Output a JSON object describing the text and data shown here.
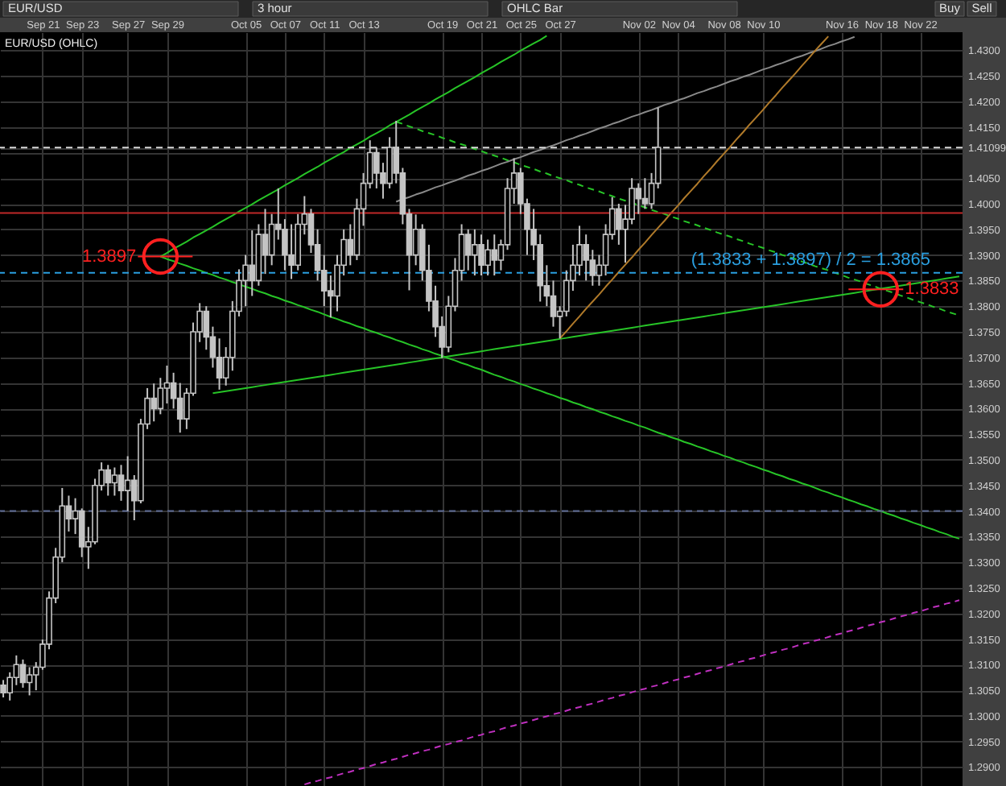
{
  "chart_data": {
    "type": "candlestick",
    "title": "EUR/USD (OHLC)",
    "categories": [
      null,
      null,
      null,
      null,
      null,
      null,
      "Sep 21",
      null,
      null,
      null,
      null,
      null,
      "Sep 23",
      null,
      null,
      null,
      null,
      null,
      null,
      "Sep 27",
      null,
      null,
      null,
      null,
      null,
      "Sep 29",
      null,
      null,
      null,
      null,
      null,
      null,
      null,
      null,
      null,
      null,
      null,
      "Oct 05",
      null,
      null,
      null,
      null,
      null,
      "Oct 07",
      null,
      null,
      null,
      null,
      null,
      "Oct 11",
      null,
      null,
      null,
      null,
      null,
      "Oct 13",
      null,
      null,
      null,
      null,
      null,
      null,
      null,
      null,
      null,
      null,
      null,
      "Oct 19",
      null,
      null,
      null,
      null,
      null,
      "Oct 21",
      null,
      null,
      null,
      null,
      null,
      "Oct 25",
      null,
      null,
      null,
      null,
      null,
      "Oct 27",
      null,
      null,
      null,
      null,
      null,
      null,
      null,
      null,
      null,
      null,
      null,
      "Nov 02",
      null,
      null,
      null,
      null,
      null,
      "Nov 04",
      null,
      null,
      null,
      null,
      null,
      null,
      "Nov 08",
      null,
      null,
      null,
      null,
      null,
      "Nov 10",
      null,
      null,
      null,
      null,
      null,
      null,
      null,
      null,
      null,
      null,
      null,
      "Nov 16",
      null,
      null,
      null,
      null,
      null,
      "Nov 18",
      null,
      null,
      null,
      null,
      null,
      "Nov 22",
      null,
      null,
      null,
      null,
      null,
      null
    ],
    "ylim": [
      1.2863,
      1.4335
    ],
    "yticks": [
      {
        "value": 1.29,
        "label": "1.2900"
      },
      {
        "value": 1.295,
        "label": "1.2950"
      },
      {
        "value": 1.3,
        "label": "1.3000"
      },
      {
        "value": 1.305,
        "label": "1.3050"
      },
      {
        "value": 1.31,
        "label": "1.3100"
      },
      {
        "value": 1.315,
        "label": "1.3150"
      },
      {
        "value": 1.32,
        "label": "1.3200"
      },
      {
        "value": 1.325,
        "label": "1.3250"
      },
      {
        "value": 1.33,
        "label": "1.3300"
      },
      {
        "value": 1.335,
        "label": "1.3350"
      },
      {
        "value": 1.34,
        "label": "1.3400"
      },
      {
        "value": 1.345,
        "label": "1.3450"
      },
      {
        "value": 1.35,
        "label": "1.3500"
      },
      {
        "value": 1.355,
        "label": "1.3550"
      },
      {
        "value": 1.36,
        "label": "1.3600"
      },
      {
        "value": 1.365,
        "label": "1.3650"
      },
      {
        "value": 1.37,
        "label": "1.3700"
      },
      {
        "value": 1.375,
        "label": "1.3750"
      },
      {
        "value": 1.38,
        "label": "1.3800"
      },
      {
        "value": 1.385,
        "label": "1.3850"
      },
      {
        "value": 1.39,
        "label": "1.3900"
      },
      {
        "value": 1.395,
        "label": "1.3950"
      },
      {
        "value": 1.4,
        "label": "1.4000"
      },
      {
        "value": 1.405,
        "label": "1.4050"
      },
      {
        "value": 1.41,
        "label": null
      },
      {
        "value": 1.41099,
        "label": "1.41099"
      },
      {
        "value": 1.415,
        "label": "1.4150"
      },
      {
        "value": 1.42,
        "label": "1.4200"
      },
      {
        "value": 1.425,
        "label": "1.4250"
      },
      {
        "value": 1.43,
        "label": "1.4300"
      }
    ],
    "grid": true,
    "series": [
      {
        "color": "#c4c4c4",
        "ohlc": [
          [
            1.306,
            1.307,
            1.3036,
            1.3045
          ],
          [
            1.3045,
            1.3085,
            1.303,
            1.3075
          ],
          [
            1.3075,
            1.3118,
            1.306,
            1.31
          ],
          [
            1.31,
            1.311,
            1.3055,
            1.3065
          ],
          [
            1.3065,
            1.3095,
            1.304,
            1.308
          ],
          [
            1.308,
            1.3105,
            1.305,
            1.3095
          ],
          [
            1.3095,
            1.3149,
            1.309,
            1.314
          ],
          [
            1.314,
            1.3243,
            1.313,
            1.323
          ],
          [
            1.323,
            1.3328,
            1.322,
            1.331
          ],
          [
            1.331,
            1.3445,
            1.33,
            1.341
          ],
          [
            1.341,
            1.343,
            1.336,
            1.3385
          ],
          [
            1.3385,
            1.3425,
            1.3355,
            1.34
          ],
          [
            1.34,
            1.3405,
            1.331,
            1.333
          ],
          [
            1.333,
            1.3369,
            1.3287,
            1.334
          ],
          [
            1.334,
            1.3463,
            1.3335,
            1.345
          ],
          [
            1.345,
            1.3495,
            1.344,
            1.348
          ],
          [
            1.348,
            1.349,
            1.343,
            1.3455
          ],
          [
            1.3455,
            1.3485,
            1.343,
            1.347
          ],
          [
            1.347,
            1.349,
            1.342,
            1.344
          ],
          [
            1.344,
            1.3507,
            1.34,
            1.346
          ],
          [
            1.346,
            1.347,
            1.3382,
            1.342
          ],
          [
            1.342,
            1.358,
            1.3415,
            1.357
          ],
          [
            1.357,
            1.364,
            1.356,
            1.362
          ],
          [
            1.362,
            1.3649,
            1.3575,
            1.36
          ],
          [
            1.36,
            1.366,
            1.3589,
            1.364
          ],
          [
            1.364,
            1.3684,
            1.361,
            1.365
          ],
          [
            1.365,
            1.367,
            1.36,
            1.362
          ],
          [
            1.362,
            1.365,
            1.3553,
            1.358
          ],
          [
            1.358,
            1.364,
            1.356,
            1.363
          ],
          [
            1.363,
            1.3768,
            1.3625,
            1.375
          ],
          [
            1.375,
            1.3806,
            1.373,
            1.379
          ],
          [
            1.379,
            1.38,
            1.3715,
            1.374
          ],
          [
            1.374,
            1.376,
            1.368,
            1.37
          ],
          [
            1.37,
            1.3737,
            1.3637,
            1.366
          ],
          [
            1.366,
            1.372,
            1.3645,
            1.37
          ],
          [
            1.37,
            1.381,
            1.3674,
            1.379
          ],
          [
            1.379,
            1.3872,
            1.378,
            1.385
          ],
          [
            1.385,
            1.39,
            1.38,
            1.388
          ],
          [
            1.388,
            1.3948,
            1.382,
            1.385
          ],
          [
            1.385,
            1.396,
            1.384,
            1.394
          ],
          [
            1.394,
            1.399,
            1.3863,
            1.39
          ],
          [
            1.39,
            1.398,
            1.388,
            1.396
          ],
          [
            1.396,
            1.403,
            1.393,
            1.395
          ],
          [
            1.395,
            1.397,
            1.387,
            1.39
          ],
          [
            1.39,
            1.396,
            1.3853,
            1.388
          ],
          [
            1.388,
            1.398,
            1.387,
            1.396
          ],
          [
            1.396,
            1.4015,
            1.394,
            1.398
          ],
          [
            1.398,
            1.399,
            1.3904,
            1.392
          ],
          [
            1.392,
            1.395,
            1.385,
            1.387
          ],
          [
            1.387,
            1.39,
            1.38,
            1.383
          ],
          [
            1.383,
            1.386,
            1.3778,
            1.382
          ],
          [
            1.382,
            1.39,
            1.379,
            1.388
          ],
          [
            1.388,
            1.395,
            1.386,
            1.393
          ],
          [
            1.393,
            1.396,
            1.388,
            1.39
          ],
          [
            1.39,
            1.401,
            1.389,
            1.399
          ],
          [
            1.399,
            1.406,
            1.3957,
            1.404
          ],
          [
            1.404,
            1.4124,
            1.403,
            1.41
          ],
          [
            1.41,
            1.411,
            1.403,
            1.406
          ],
          [
            1.406,
            1.408,
            1.401,
            1.404
          ],
          [
            1.404,
            1.413,
            1.403,
            1.411
          ],
          [
            1.411,
            1.4162,
            1.404,
            1.406
          ],
          [
            1.406,
            1.407,
            1.396,
            1.398
          ],
          [
            1.398,
            1.399,
            1.3831,
            1.39
          ],
          [
            1.39,
            1.3979,
            1.388,
            1.395
          ],
          [
            1.395,
            1.396,
            1.385,
            1.387
          ],
          [
            1.387,
            1.392,
            1.379,
            1.381
          ],
          [
            1.381,
            1.384,
            1.374,
            1.376
          ],
          [
            1.376,
            1.378,
            1.3699,
            1.372
          ],
          [
            1.372,
            1.382,
            1.371,
            1.38
          ],
          [
            1.38,
            1.3894,
            1.379,
            1.387
          ],
          [
            1.387,
            1.396,
            1.385,
            1.394
          ],
          [
            1.394,
            1.395,
            1.387,
            1.39
          ],
          [
            1.39,
            1.395,
            1.386,
            1.392
          ],
          [
            1.392,
            1.394,
            1.386,
            1.388
          ],
          [
            1.388,
            1.393,
            1.386,
            1.391
          ],
          [
            1.391,
            1.394,
            1.386,
            1.389
          ],
          [
            1.389,
            1.393,
            1.387,
            1.392
          ],
          [
            1.392,
            1.405,
            1.391,
            1.403
          ],
          [
            1.403,
            1.4089,
            1.4,
            1.406
          ],
          [
            1.406,
            1.407,
            1.398,
            1.4
          ],
          [
            1.4,
            1.401,
            1.39,
            1.395
          ],
          [
            1.395,
            1.399,
            1.389,
            1.392
          ],
          [
            1.392,
            1.394,
            1.3809,
            1.384
          ],
          [
            1.384,
            1.388,
            1.38,
            1.382
          ],
          [
            1.382,
            1.385,
            1.376,
            1.378
          ],
          [
            1.378,
            1.38,
            1.3737,
            1.379
          ],
          [
            1.379,
            1.387,
            1.378,
            1.385
          ],
          [
            1.385,
            1.392,
            1.383,
            1.388
          ],
          [
            1.388,
            1.3957,
            1.386,
            1.392
          ],
          [
            1.392,
            1.394,
            1.385,
            1.389
          ],
          [
            1.389,
            1.391,
            1.384,
            1.386
          ],
          [
            1.386,
            1.39,
            1.384,
            1.388
          ],
          [
            1.388,
            1.396,
            1.386,
            1.394
          ],
          [
            1.394,
            1.4013,
            1.393,
            1.399
          ],
          [
            1.399,
            1.4,
            1.392,
            1.395
          ],
          [
            1.395,
            1.3998,
            1.3885,
            1.397
          ],
          [
            1.397,
            1.405,
            1.396,
            1.403
          ],
          [
            1.403,
            1.404,
            1.398,
            1.401
          ],
          [
            1.401,
            1.405,
            1.399,
            1.4
          ],
          [
            1.4,
            1.406,
            1.399,
            1.404
          ],
          [
            1.404,
            1.4188,
            1.403,
            1.411
          ],
          null,
          null,
          null,
          null,
          null,
          null,
          null,
          null,
          null,
          null,
          null,
          null,
          null,
          null,
          null,
          null,
          null,
          null,
          null,
          null,
          null,
          null,
          null,
          null,
          null,
          null,
          null,
          null,
          null,
          null,
          null,
          null,
          null,
          null,
          null,
          null,
          null,
          null,
          null,
          null,
          null,
          null,
          null,
          null,
          null,
          null
        ]
      },
      {
        "type": "line",
        "color": "#27c427",
        "line_style": "solid",
        "values": [
          null,
          null,
          null,
          null,
          null,
          null,
          null,
          null,
          null,
          null,
          null,
          null,
          null,
          null,
          null,
          null,
          null,
          null,
          null,
          null,
          null,
          null,
          null,
          null,
          1.3897,
          1.3904,
          1.3912,
          1.3919,
          1.3926,
          1.3934,
          1.3941,
          1.3948,
          1.3955,
          1.3963,
          1.397,
          1.3977,
          1.3985,
          1.3992,
          1.3999,
          1.4007,
          1.4014,
          1.4021,
          1.4028,
          1.4036,
          1.4043,
          1.405,
          1.4058,
          1.4065,
          1.4072,
          1.408,
          1.4087,
          1.4094,
          1.4101,
          1.4109,
          1.4116,
          1.4123,
          1.4131,
          1.4138,
          1.4145,
          1.4153,
          1.416,
          1.4167,
          1.4174,
          1.4182,
          1.4189,
          1.4196,
          1.4204,
          1.4211,
          1.4218,
          1.4226,
          1.4233,
          1.424,
          1.4247,
          1.4255,
          1.4262,
          1.4269,
          1.4277,
          1.4284,
          1.4291,
          1.4299,
          1.4306,
          1.4313,
          1.432,
          1.4328,
          null,
          null,
          null,
          null,
          null,
          null,
          null,
          null,
          null,
          null,
          null,
          null,
          null,
          null,
          null,
          null,
          null,
          null,
          null,
          null,
          null,
          null,
          null,
          null,
          null,
          null,
          null,
          null,
          null,
          null,
          null,
          null,
          null,
          null,
          null,
          null,
          null,
          null,
          null,
          null,
          null,
          null,
          null,
          null,
          null,
          null,
          null,
          null,
          null,
          null,
          null,
          null,
          null,
          null,
          null,
          null,
          null,
          null,
          null,
          null,
          null,
          null,
          null
        ]
      },
      {
        "type": "line",
        "color": "#27c427",
        "line_style": "solid",
        "values": [
          null,
          null,
          null,
          null,
          null,
          null,
          null,
          null,
          null,
          null,
          null,
          null,
          null,
          null,
          null,
          null,
          null,
          null,
          null,
          null,
          null,
          null,
          null,
          null,
          1.3897,
          1.3892,
          1.3888,
          1.3883,
          1.3879,
          1.3874,
          1.387,
          1.3865,
          1.3861,
          1.3856,
          1.3852,
          1.3847,
          1.3843,
          1.3838,
          1.3834,
          1.3829,
          1.3825,
          1.382,
          1.3816,
          1.3811,
          1.3807,
          1.3802,
          1.3798,
          1.3793,
          1.3789,
          1.3784,
          1.3779,
          1.3775,
          1.377,
          1.3766,
          1.3761,
          1.3757,
          1.3752,
          1.3748,
          1.3743,
          1.3739,
          1.3734,
          1.373,
          1.3725,
          1.3721,
          1.3716,
          1.3712,
          1.3707,
          1.3703,
          1.3698,
          1.3694,
          1.3689,
          1.3685,
          1.368,
          1.3676,
          1.3671,
          1.3666,
          1.3662,
          1.3657,
          1.3653,
          1.3648,
          1.3644,
          1.3639,
          1.3635,
          1.363,
          1.3626,
          1.3621,
          1.3617,
          1.3612,
          1.3608,
          1.3603,
          1.3599,
          1.3594,
          1.359,
          1.3585,
          1.3581,
          1.3576,
          1.3572,
          1.3567,
          1.3563,
          1.3558,
          1.3553,
          1.3549,
          1.3544,
          1.354,
          1.3535,
          1.3531,
          1.3526,
          1.3522,
          1.3517,
          1.3513,
          1.3508,
          1.3504,
          1.3499,
          1.3495,
          1.349,
          1.3486,
          1.3481,
          1.3477,
          1.3472,
          1.3468,
          1.3463,
          1.3459,
          1.3454,
          1.345,
          1.3445,
          1.344,
          1.3436,
          1.3431,
          1.3427,
          1.3422,
          1.3418,
          1.3413,
          1.3409,
          1.3404,
          1.34,
          1.3395,
          1.3391,
          1.3386,
          1.3382,
          1.3377,
          1.3373,
          1.3368,
          1.3364,
          1.3359,
          1.3355,
          1.335,
          1.3346
        ]
      },
      {
        "type": "line",
        "color": "#27c427",
        "line_style": "dashed",
        "values": [
          null,
          null,
          null,
          null,
          null,
          null,
          null,
          null,
          null,
          null,
          null,
          null,
          null,
          null,
          null,
          null,
          null,
          null,
          null,
          null,
          null,
          null,
          null,
          null,
          null,
          null,
          null,
          null,
          null,
          null,
          null,
          null,
          null,
          null,
          null,
          null,
          null,
          null,
          null,
          null,
          null,
          null,
          null,
          null,
          null,
          null,
          null,
          null,
          null,
          null,
          null,
          null,
          null,
          null,
          null,
          null,
          null,
          null,
          null,
          null,
          1.416,
          1.4156,
          1.4151,
          1.4147,
          1.4142,
          1.4138,
          1.4134,
          1.4129,
          1.4125,
          1.412,
          1.4116,
          1.4112,
          1.4107,
          1.4103,
          1.4098,
          1.4094,
          1.409,
          1.4085,
          1.4081,
          1.4076,
          1.4072,
          1.4068,
          1.4063,
          1.4059,
          1.4054,
          1.405,
          1.4046,
          1.4041,
          1.4037,
          1.4032,
          1.4028,
          1.4024,
          1.4019,
          1.4015,
          1.401,
          1.4006,
          1.4002,
          1.3997,
          1.3993,
          1.3988,
          1.3984,
          1.398,
          1.3975,
          1.3971,
          1.3966,
          1.3962,
          1.3958,
          1.3953,
          1.3949,
          1.3944,
          1.394,
          1.3936,
          1.3931,
          1.3927,
          1.3922,
          1.3918,
          1.3914,
          1.3909,
          1.3905,
          1.39,
          1.3896,
          1.3892,
          1.3887,
          1.3883,
          1.3878,
          1.3874,
          1.387,
          1.3865,
          1.3861,
          1.3856,
          1.3852,
          1.3848,
          1.3843,
          1.3839,
          1.3834,
          1.383,
          1.3826,
          1.3821,
          1.3817,
          1.3812,
          1.3808,
          1.3804,
          1.3799,
          1.3795,
          1.379,
          1.3786,
          1.3782
        ]
      },
      {
        "type": "line",
        "color": "#27c427",
        "line_style": "solid",
        "values": [
          null,
          null,
          null,
          null,
          null,
          null,
          null,
          null,
          null,
          null,
          null,
          null,
          null,
          null,
          null,
          null,
          null,
          null,
          null,
          null,
          null,
          null,
          null,
          null,
          null,
          null,
          null,
          null,
          null,
          null,
          null,
          null,
          1.363,
          1.3632,
          1.3634,
          1.3636,
          1.3638,
          1.364,
          1.3642,
          1.3644,
          1.3646,
          1.3648,
          1.365,
          1.3652,
          1.3654,
          1.3656,
          1.3658,
          1.366,
          1.3662,
          1.3664,
          1.3666,
          1.3668,
          1.367,
          1.3672,
          1.3674,
          1.3676,
          1.3678,
          1.368,
          1.3682,
          1.3684,
          1.3686,
          1.3688,
          1.369,
          1.3692,
          1.3694,
          1.3696,
          1.3698,
          1.37,
          1.3702,
          1.3704,
          1.3706,
          1.3708,
          1.371,
          1.3712,
          1.3714,
          1.3716,
          1.3718,
          1.372,
          1.3722,
          1.3724,
          1.3726,
          1.3728,
          1.373,
          1.3732,
          1.3734,
          1.3736,
          1.3738,
          1.374,
          1.3742,
          1.3744,
          1.3746,
          1.3748,
          1.375,
          1.3752,
          1.3754,
          1.3756,
          1.3758,
          1.376,
          1.3762,
          1.3764,
          1.3766,
          1.3768,
          1.377,
          1.3772,
          1.3774,
          1.3776,
          1.3778,
          1.378,
          1.3782,
          1.3784,
          1.3786,
          1.3788,
          1.379,
          1.3792,
          1.3794,
          1.3796,
          1.3798,
          1.38,
          1.3802,
          1.3804,
          1.3806,
          1.3808,
          1.381,
          1.3812,
          1.3814,
          1.3816,
          1.3818,
          1.382,
          1.3822,
          1.3824,
          1.3826,
          1.3828,
          1.383,
          1.3832,
          1.3834,
          1.3836,
          1.3838,
          1.384,
          1.3842,
          1.3844,
          1.3846,
          1.3848,
          1.385,
          1.3852,
          1.3854,
          1.3856,
          1.3858
        ]
      },
      {
        "type": "line",
        "color": "#8a8a8a",
        "line_style": "solid",
        "values": [
          null,
          null,
          null,
          null,
          null,
          null,
          null,
          null,
          null,
          null,
          null,
          null,
          null,
          null,
          null,
          null,
          null,
          null,
          null,
          null,
          null,
          null,
          null,
          null,
          null,
          null,
          null,
          null,
          null,
          null,
          null,
          null,
          null,
          null,
          null,
          null,
          null,
          null,
          null,
          null,
          null,
          null,
          null,
          null,
          null,
          null,
          null,
          null,
          null,
          null,
          null,
          null,
          null,
          null,
          null,
          null,
          null,
          null,
          null,
          null,
          1.4004,
          1.4009,
          1.4013,
          1.4018,
          1.4022,
          1.4027,
          1.4032,
          1.4036,
          1.4041,
          1.4045,
          1.405,
          1.4055,
          1.4059,
          1.4064,
          1.4068,
          1.4073,
          1.4078,
          1.4082,
          1.4087,
          1.4091,
          1.4096,
          1.4101,
          1.4105,
          1.411,
          1.4114,
          1.4119,
          1.4124,
          1.4128,
          1.4133,
          1.4137,
          1.4142,
          1.4147,
          1.4151,
          1.4156,
          1.416,
          1.4165,
          1.417,
          1.4174,
          1.4179,
          1.4183,
          1.4188,
          1.4193,
          1.4197,
          1.4202,
          1.4206,
          1.4211,
          1.4216,
          1.422,
          1.4225,
          1.4229,
          1.4234,
          1.4239,
          1.4243,
          1.4248,
          1.4252,
          1.4257,
          1.4262,
          1.4266,
          1.4271,
          1.4275,
          1.428,
          1.4285,
          1.4289,
          1.4294,
          1.4298,
          1.4303,
          1.4308,
          1.4312,
          1.4317,
          1.4321,
          1.4326,
          null,
          null,
          null,
          null,
          null,
          null,
          null,
          null,
          null,
          null,
          null,
          null,
          null,
          null,
          null,
          null
        ]
      },
      {
        "type": "line",
        "color": "#b07a2a",
        "line_style": "solid",
        "values": [
          null,
          null,
          null,
          null,
          null,
          null,
          null,
          null,
          null,
          null,
          null,
          null,
          null,
          null,
          null,
          null,
          null,
          null,
          null,
          null,
          null,
          null,
          null,
          null,
          null,
          null,
          null,
          null,
          null,
          null,
          null,
          null,
          null,
          null,
          null,
          null,
          null,
          null,
          null,
          null,
          null,
          null,
          null,
          null,
          null,
          null,
          null,
          null,
          null,
          null,
          null,
          null,
          null,
          null,
          null,
          null,
          null,
          null,
          null,
          null,
          null,
          null,
          null,
          null,
          null,
          null,
          null,
          null,
          null,
          null,
          null,
          null,
          null,
          null,
          null,
          null,
          null,
          null,
          null,
          null,
          null,
          null,
          null,
          null,
          null,
          1.3737,
          1.3751,
          1.3766,
          1.378,
          1.3795,
          1.3809,
          1.3823,
          1.3838,
          1.3852,
          1.3867,
          1.3881,
          1.3895,
          1.391,
          1.3924,
          1.3939,
          1.3953,
          1.3967,
          1.3982,
          1.3996,
          1.4011,
          1.4025,
          1.4039,
          1.4054,
          1.4068,
          1.4083,
          1.4097,
          1.4111,
          1.4126,
          1.414,
          1.4155,
          1.4169,
          1.4183,
          1.4198,
          1.4212,
          1.4227,
          1.4241,
          1.4255,
          1.427,
          1.4284,
          1.4299,
          1.4313,
          1.4327,
          null,
          null,
          null,
          null,
          null,
          null,
          null,
          null,
          null,
          null,
          null,
          null,
          null,
          null,
          null,
          null,
          null,
          null,
          null,
          null
        ]
      },
      {
        "type": "line",
        "color": "#c030c0",
        "line_style": "dashed",
        "values": [
          null,
          null,
          null,
          null,
          null,
          null,
          null,
          null,
          null,
          null,
          null,
          null,
          null,
          null,
          null,
          null,
          null,
          null,
          null,
          null,
          null,
          null,
          null,
          null,
          null,
          null,
          null,
          null,
          null,
          null,
          null,
          null,
          null,
          null,
          null,
          null,
          null,
          null,
          null,
          null,
          null,
          null,
          null,
          null,
          null,
          null,
          1.2866,
          1.287,
          1.2873,
          1.2877,
          1.288,
          1.2884,
          1.2888,
          1.2891,
          1.2895,
          1.2898,
          1.2902,
          1.2906,
          1.2909,
          1.2913,
          1.2916,
          1.292,
          1.2924,
          1.2927,
          1.2931,
          1.2934,
          1.2938,
          1.2942,
          1.2945,
          1.2949,
          1.2952,
          1.2956,
          1.296,
          1.2963,
          1.2967,
          1.297,
          1.2974,
          1.2978,
          1.2981,
          1.2985,
          1.2988,
          1.2992,
          1.2996,
          1.2999,
          1.3003,
          1.3006,
          1.301,
          1.3014,
          1.3017,
          1.3021,
          1.3024,
          1.3028,
          1.3032,
          1.3035,
          1.3039,
          1.3042,
          1.3046,
          1.305,
          1.3053,
          1.3057,
          1.306,
          1.3064,
          1.3068,
          1.3071,
          1.3075,
          1.3078,
          1.3082,
          1.3086,
          1.3089,
          1.3093,
          1.3096,
          1.31,
          1.3104,
          1.3107,
          1.3111,
          1.3114,
          1.3118,
          1.3122,
          1.3125,
          1.3129,
          1.3132,
          1.3136,
          1.314,
          1.3143,
          1.3147,
          1.315,
          1.3154,
          1.3158,
          1.3161,
          1.3165,
          1.3168,
          1.3172,
          1.3176,
          1.3179,
          1.3183,
          1.3186,
          1.319,
          1.3194,
          1.3197,
          1.3201,
          1.3204,
          1.3208,
          1.3212,
          1.3215,
          1.3219,
          1.3222,
          1.3226
        ]
      },
      {
        "type": "scatter",
        "color": "#ff2020",
        "marker": "circle",
        "values": [
          null,
          null,
          null,
          null,
          null,
          null,
          null,
          null,
          null,
          null,
          null,
          null,
          null,
          null,
          null,
          null,
          null,
          null,
          null,
          null,
          null,
          null,
          null,
          null,
          1.3897,
          null,
          null,
          null,
          null,
          null,
          null,
          null,
          null,
          null,
          null,
          null,
          null,
          null,
          null,
          null,
          null,
          null,
          null,
          null,
          null,
          null,
          null,
          null,
          null,
          null,
          null,
          null,
          null,
          null,
          null,
          null,
          null,
          null,
          null,
          null,
          null,
          null,
          null,
          null,
          null,
          null,
          null,
          null,
          null,
          null,
          null,
          null,
          null,
          null,
          null,
          null,
          null,
          null,
          null,
          null,
          null,
          null,
          null,
          null,
          null,
          null,
          null,
          null,
          null,
          null,
          null,
          null,
          null,
          null,
          null,
          null,
          null,
          null,
          null,
          null,
          null,
          null,
          null,
          null,
          null,
          null,
          null,
          null,
          null,
          null,
          null,
          null,
          null,
          null,
          null,
          null,
          null,
          null,
          null,
          null,
          null,
          null,
          null,
          null,
          null,
          null,
          null,
          null,
          null,
          null,
          null,
          null,
          null,
          null,
          1.3833,
          null,
          null,
          null,
          null,
          null,
          null,
          null,
          null,
          null,
          null,
          null,
          null
        ],
        "value_labels": [
          null,
          null,
          null,
          null,
          null,
          null,
          null,
          null,
          null,
          null,
          null,
          null,
          null,
          null,
          null,
          null,
          null,
          null,
          null,
          null,
          null,
          null,
          null,
          null,
          "1.3897",
          null,
          null,
          null,
          null,
          null,
          null,
          null,
          null,
          null,
          null,
          null,
          null,
          null,
          null,
          null,
          null,
          null,
          null,
          null,
          null,
          null,
          null,
          null,
          null,
          null,
          null,
          null,
          null,
          null,
          null,
          null,
          null,
          null,
          null,
          null,
          null,
          null,
          null,
          null,
          null,
          null,
          null,
          null,
          null,
          null,
          null,
          null,
          null,
          null,
          null,
          null,
          null,
          null,
          null,
          null,
          null,
          null,
          null,
          null,
          null,
          null,
          null,
          null,
          null,
          null,
          null,
          null,
          null,
          null,
          null,
          null,
          null,
          null,
          null,
          null,
          null,
          null,
          null,
          null,
          null,
          null,
          null,
          null,
          null,
          null,
          null,
          null,
          null,
          null,
          null,
          null,
          null,
          null,
          null,
          null,
          null,
          null,
          null,
          null,
          null,
          null,
          null,
          null,
          null,
          null,
          null,
          null,
          null,
          null,
          "1.3833",
          null,
          null,
          null,
          null,
          null,
          null,
          null,
          null,
          null,
          null,
          null,
          null
        ]
      }
    ],
    "ref_lines": [
      {
        "axis": "y",
        "value": 1.41099,
        "color": "#d8d8d8",
        "line_style": "dashed"
      },
      {
        "axis": "y",
        "value": 1.3982,
        "color": "#c02828",
        "line_style": "solid"
      },
      {
        "axis": "y",
        "value": 1.3865,
        "label": "(1.3833 + 1.3897) / 2 = 1.3865",
        "color": "#2a9fe0",
        "line_style": "dashed"
      },
      {
        "axis": "y",
        "value": 1.34,
        "color": "#5c6a94",
        "line_style": "dashed"
      }
    ],
    "annotations": [
      "EUR/USD",
      "3 hour",
      "OHLC Bar",
      "Buy",
      "Sell"
    ]
  }
}
